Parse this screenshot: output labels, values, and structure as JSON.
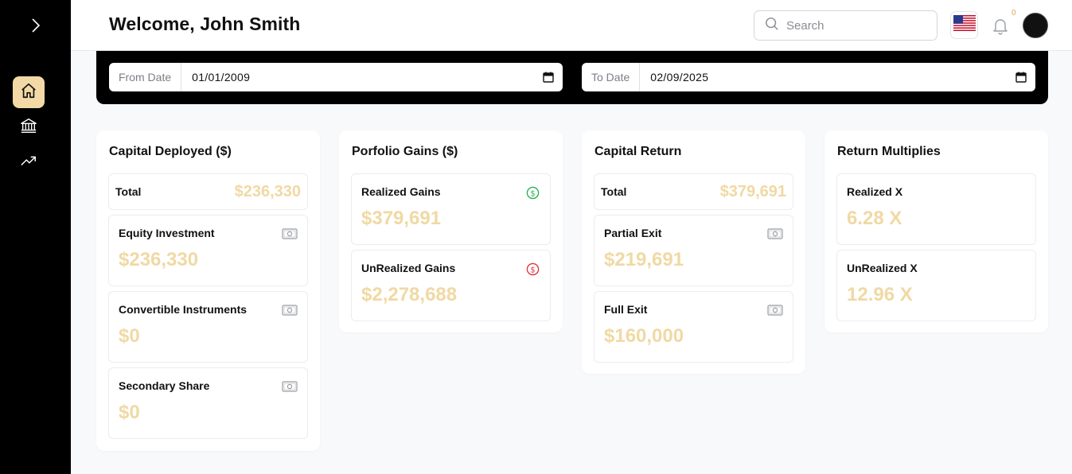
{
  "colors": {
    "accent": "#f3d9a6",
    "value": "#f0d9a4",
    "gain_icon": "#22b14c",
    "loss_icon": "#e0303a"
  },
  "sidebar": {
    "toggle_icon": "chevron-right-icon",
    "items": [
      {
        "name": "home",
        "icon": "home-icon",
        "active": true
      },
      {
        "name": "bank",
        "icon": "bank-icon",
        "active": false
      },
      {
        "name": "trend",
        "icon": "trending-up-icon",
        "active": false
      }
    ]
  },
  "header": {
    "welcome": "Welcome, John Smith",
    "search_placeholder": "Search",
    "notification_count": "0"
  },
  "filters": {
    "from_label": "From Date",
    "from_value": "01/01/2009",
    "to_label": "To Date",
    "to_value": "02/09/2025"
  },
  "cards": {
    "capital_deployed": {
      "title": "Capital Deployed ($)",
      "total_label": "Total",
      "total_value": "$236,330",
      "items": [
        {
          "label": "Equity Investment",
          "value": "$236,330"
        },
        {
          "label": "Convertible Instruments",
          "value": "$0"
        },
        {
          "label": "Secondary Share",
          "value": "$0"
        }
      ]
    },
    "portfolio_gains": {
      "title": "Porfolio Gains ($)",
      "items": [
        {
          "label": "Realized Gains",
          "value": "$379,691"
        },
        {
          "label": "UnRealized Gains",
          "value": "$2,278,688"
        }
      ]
    },
    "capital_return": {
      "title": "Capital Return",
      "total_label": "Total",
      "total_value": "$379,691",
      "items": [
        {
          "label": "Partial Exit",
          "value": "$219,691"
        },
        {
          "label": "Full Exit",
          "value": "$160,000"
        }
      ]
    },
    "return_multiples": {
      "title": "Return Multiplies",
      "items": [
        {
          "label": "Realized X",
          "value": "6.28 X"
        },
        {
          "label": "UnRealized X",
          "value": "12.96 X"
        }
      ]
    }
  }
}
